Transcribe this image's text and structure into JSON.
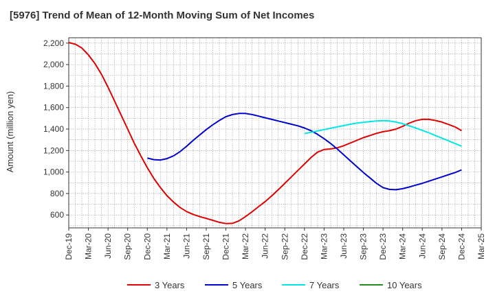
{
  "chart_data": {
    "type": "line",
    "title": "[5976]  Trend of Mean of 12-Month Moving Sum of Net Incomes",
    "ylabel": "Amount (million yen)",
    "xlabel": "",
    "ylim": [
      480,
      2250
    ],
    "yticks": [
      600,
      800,
      1000,
      1200,
      1400,
      1600,
      1800,
      2000,
      2200
    ],
    "ytick_labels": [
      "600",
      "800",
      "1,000",
      "1,200",
      "1,400",
      "1,600",
      "1,800",
      "2,000",
      "2,200"
    ],
    "x_start": "2019-12",
    "x_end": "2025-03",
    "xtick_labels": [
      "Dec-19",
      "Mar-20",
      "Jun-20",
      "Sep-20",
      "Dec-20",
      "Mar-21",
      "Jun-21",
      "Sep-21",
      "Dec-21",
      "Mar-22",
      "Jun-22",
      "Sep-22",
      "Dec-22",
      "Mar-23",
      "Jun-23",
      "Sep-23",
      "Dec-23",
      "Mar-24",
      "Jun-24",
      "Sep-24",
      "Dec-24",
      "Mar-25"
    ],
    "grid": true,
    "legend_position": "bottom",
    "series": [
      {
        "name": "3 Years",
        "color": "#dd0000",
        "x": [
          "2019-12",
          "2020-01",
          "2020-02",
          "2020-03",
          "2020-04",
          "2020-05",
          "2020-06",
          "2020-07",
          "2020-08",
          "2020-09",
          "2020-10",
          "2020-11",
          "2020-12",
          "2021-01",
          "2021-02",
          "2021-03",
          "2021-04",
          "2021-05",
          "2021-06",
          "2021-07",
          "2021-08",
          "2021-09",
          "2021-10",
          "2021-11",
          "2021-12",
          "2022-01",
          "2022-02",
          "2022-03",
          "2022-04",
          "2022-05",
          "2022-06",
          "2022-07",
          "2022-08",
          "2022-09",
          "2022-10",
          "2022-11",
          "2022-12",
          "2023-01",
          "2023-02",
          "2023-03",
          "2023-04",
          "2023-05",
          "2023-06",
          "2023-07",
          "2023-08",
          "2023-09",
          "2023-10",
          "2023-11",
          "2023-12",
          "2024-01",
          "2024-02",
          "2024-03",
          "2024-04",
          "2024-05",
          "2024-06",
          "2024-07",
          "2024-08",
          "2024-09",
          "2024-10",
          "2024-11",
          "2024-12"
        ],
        "values": [
          2205,
          2190,
          2155,
          2090,
          2010,
          1910,
          1790,
          1660,
          1530,
          1400,
          1270,
          1150,
          1040,
          940,
          855,
          780,
          720,
          670,
          632,
          605,
          585,
          568,
          550,
          532,
          520,
          522,
          545,
          585,
          630,
          678,
          725,
          778,
          835,
          895,
          955,
          1015,
          1075,
          1135,
          1185,
          1210,
          1215,
          1225,
          1245,
          1270,
          1295,
          1320,
          1340,
          1360,
          1375,
          1385,
          1400,
          1425,
          1455,
          1478,
          1490,
          1490,
          1480,
          1465,
          1443,
          1420,
          1385
        ]
      },
      {
        "name": "5 Years",
        "color": "#0000cc",
        "x": [
          "2020-12",
          "2021-01",
          "2021-02",
          "2021-03",
          "2021-04",
          "2021-05",
          "2021-06",
          "2021-07",
          "2021-08",
          "2021-09",
          "2021-10",
          "2021-11",
          "2021-12",
          "2022-01",
          "2022-02",
          "2022-03",
          "2022-04",
          "2022-05",
          "2022-06",
          "2022-07",
          "2022-08",
          "2022-09",
          "2022-10",
          "2022-11",
          "2022-12",
          "2023-01",
          "2023-02",
          "2023-03",
          "2023-04",
          "2023-05",
          "2023-06",
          "2023-07",
          "2023-08",
          "2023-09",
          "2023-10",
          "2023-11",
          "2023-12",
          "2024-01",
          "2024-02",
          "2024-03",
          "2024-04",
          "2024-05",
          "2024-06",
          "2024-07",
          "2024-08",
          "2024-09",
          "2024-10",
          "2024-11",
          "2024-12"
        ],
        "values": [
          1130,
          1115,
          1112,
          1125,
          1150,
          1190,
          1240,
          1295,
          1345,
          1395,
          1440,
          1480,
          1515,
          1535,
          1545,
          1545,
          1535,
          1520,
          1505,
          1490,
          1475,
          1460,
          1445,
          1430,
          1410,
          1385,
          1350,
          1310,
          1265,
          1215,
          1160,
          1105,
          1050,
          995,
          945,
          895,
          855,
          838,
          835,
          845,
          860,
          878,
          895,
          915,
          935,
          955,
          975,
          995,
          1020
        ]
      },
      {
        "name": "7 Years",
        "color": "#00e5e5",
        "x": [
          "2022-12",
          "2023-01",
          "2023-02",
          "2023-03",
          "2023-04",
          "2023-05",
          "2023-06",
          "2023-07",
          "2023-08",
          "2023-09",
          "2023-10",
          "2023-11",
          "2023-12",
          "2024-01",
          "2024-02",
          "2024-03",
          "2024-04",
          "2024-05",
          "2024-06",
          "2024-07",
          "2024-08",
          "2024-09",
          "2024-10",
          "2024-11",
          "2024-12"
        ],
        "values": [
          1358,
          1370,
          1382,
          1395,
          1408,
          1420,
          1432,
          1445,
          1455,
          1463,
          1470,
          1475,
          1478,
          1475,
          1465,
          1450,
          1430,
          1410,
          1388,
          1365,
          1340,
          1315,
          1290,
          1265,
          1240
        ]
      },
      {
        "name": "10 Years",
        "color": "#228b22",
        "x": [],
        "values": []
      }
    ]
  }
}
